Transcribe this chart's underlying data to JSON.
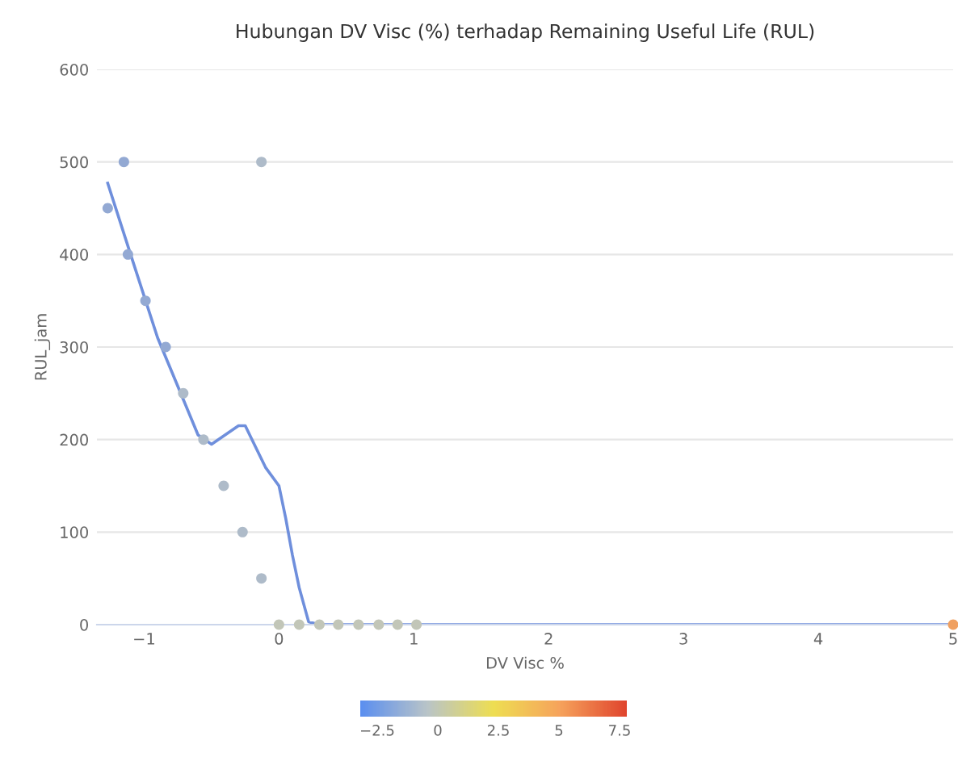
{
  "chart_data": {
    "type": "scatter",
    "title": "Hubungan DV Visc (%) terhadap Remaining Useful Life (RUL)",
    "xlabel": "DV Visc %",
    "ylabel": "RUL_jam",
    "xlim": [
      -1.35,
      5
    ],
    "xticks": [
      {
        "value": -1,
        "label": "−1"
      },
      0,
      1,
      2,
      3,
      4,
      5
    ],
    "ylim": [
      0,
      600
    ],
    "yticks": [
      0,
      100,
      200,
      300,
      400,
      500,
      600
    ],
    "grid": "y",
    "legend": false,
    "clim": [
      -3.2,
      7.8
    ],
    "cticks": [
      {
        "value": -2.5,
        "label": "−2.5"
      },
      0,
      2.5,
      5,
      7.5
    ],
    "series": [
      {
        "marker": "circle",
        "x": [
          -1.27,
          -1.15,
          -1.12,
          -0.99,
          -0.84,
          -0.71,
          -0.56,
          -0.41,
          -0.27,
          -0.13,
          -0.13,
          0,
          0.15,
          0.3,
          0.44,
          0.59,
          0.74,
          0.88,
          1.02,
          5
        ],
        "values": [
          450,
          500,
          400,
          350,
          300,
          250,
          200,
          150,
          100,
          500,
          50,
          0,
          0,
          0,
          0,
          0,
          0,
          0,
          0,
          0
        ],
        "colors": [
          "#93a9d3",
          "#93a9d3",
          "#93a9d3",
          "#93a9d3",
          "#93a9d3",
          "#aebbc9",
          "#aebbc9",
          "#aebbc9",
          "#aebbc9",
          "#aebbc9",
          "#aebbc9",
          "#c2c6b8",
          "#c2c6b8",
          "#c2c6b8",
          "#c2c6b8",
          "#c2c6b8",
          "#c2c6b8",
          "#c2c6b8",
          "#c2c6b8",
          "#f0a060"
        ]
      },
      {
        "type": "line",
        "color": "#6f8fdc",
        "line_style": "solid",
        "x": [
          -1.27,
          -1.1,
          -0.9,
          -0.7,
          -0.6,
          -0.5,
          -0.4,
          -0.3,
          -0.25,
          -0.2,
          -0.1,
          0,
          0.05,
          0.1,
          0.15,
          0.22,
          0.3,
          1,
          5
        ],
        "values": [
          477,
          400,
          310,
          240,
          205,
          195,
          205,
          215,
          215,
          200,
          170,
          150,
          115,
          75,
          40,
          3,
          0,
          0,
          0
        ]
      }
    ]
  }
}
